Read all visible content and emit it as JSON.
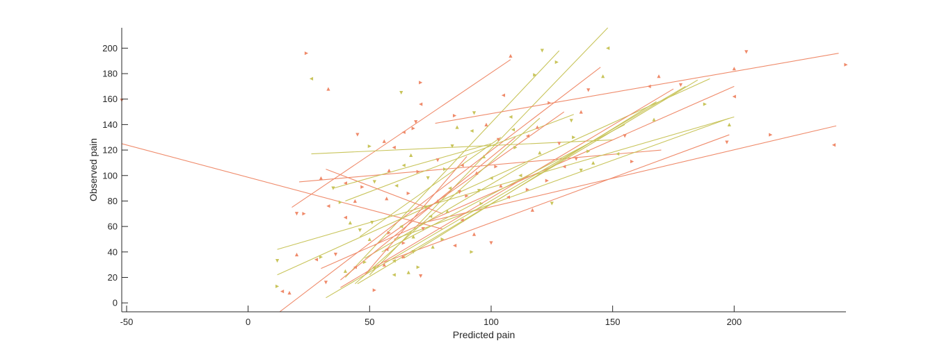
{
  "chart_data": {
    "type": "scatter",
    "title": "",
    "xlabel": "Predicted pain",
    "ylabel": "Observed pain",
    "xlim": [
      -52,
      246
    ],
    "ylim": [
      -7,
      216
    ],
    "xticks": [
      -50,
      0,
      50,
      100,
      150,
      200
    ],
    "yticks": [
      0,
      20,
      40,
      60,
      80,
      100,
      120,
      140,
      160,
      180,
      200
    ],
    "grid": false,
    "legend": "none",
    "colors": {
      "salmon": "#ef8a6a",
      "olive": "#c8c45a",
      "axis": "#262626"
    },
    "fit_lines": [
      {
        "x": [
          -52,
          80
        ],
        "y": [
          125,
          58
        ],
        "color": "#ef8a6a"
      },
      {
        "x": [
          18,
          108
        ],
        "y": [
          75,
          191
        ],
        "color": "#ef8a6a"
      },
      {
        "x": [
          40,
          128
        ],
        "y": [
          20,
          198
        ],
        "color": "#c8c45a"
      },
      {
        "x": [
          50,
          148
        ],
        "y": [
          22,
          216
        ],
        "color": "#c8c45a"
      },
      {
        "x": [
          13,
          145
        ],
        "y": [
          -7,
          185
        ],
        "color": "#ef8a6a"
      },
      {
        "x": [
          77,
          243
        ],
        "y": [
          141,
          196
        ],
        "color": "#ef8a6a"
      },
      {
        "x": [
          70,
          242
        ],
        "y": [
          62,
          139
        ],
        "color": "#ef8a6a"
      },
      {
        "x": [
          26,
          150
        ],
        "y": [
          117,
          128
        ],
        "color": "#c8c45a"
      },
      {
        "x": [
          21,
          170
        ],
        "y": [
          95,
          120
        ],
        "color": "#ef8a6a"
      },
      {
        "x": [
          12,
          200
        ],
        "y": [
          42,
          146
        ],
        "color": "#c8c45a"
      },
      {
        "x": [
          12,
          190
        ],
        "y": [
          22,
          176
        ],
        "color": "#c8c45a"
      },
      {
        "x": [
          30,
          200
        ],
        "y": [
          27,
          170
        ],
        "color": "#ef8a6a"
      },
      {
        "x": [
          45,
          185
        ],
        "y": [
          15,
          175
        ],
        "color": "#c8c45a"
      },
      {
        "x": [
          56,
          198
        ],
        "y": [
          32,
          132
        ],
        "color": "#ef8a6a"
      },
      {
        "x": [
          60,
          198
        ],
        "y": [
          50,
          145
        ],
        "color": "#c8c45a"
      },
      {
        "x": [
          32,
          180
        ],
        "y": [
          4,
          170
        ],
        "color": "#c8c45a"
      },
      {
        "x": [
          38,
          175
        ],
        "y": [
          12,
          168
        ],
        "color": "#ef8a6a"
      },
      {
        "x": [
          64,
          168
        ],
        "y": [
          35,
          158
        ],
        "color": "#c8c45a"
      },
      {
        "x": [
          40,
          134
        ],
        "y": [
          80,
          148
        ],
        "color": "#c8c45a"
      },
      {
        "x": [
          52,
          130
        ],
        "y": [
          45,
          150
        ],
        "color": "#ef8a6a"
      },
      {
        "x": [
          44,
          120
        ],
        "y": [
          15,
          145
        ],
        "color": "#c8c45a"
      },
      {
        "x": [
          46,
          104
        ],
        "y": [
          52,
          130
        ],
        "color": "#c8c45a"
      },
      {
        "x": [
          32,
          80
        ],
        "y": [
          105,
          70
        ],
        "color": "#ef8a6a"
      },
      {
        "x": [
          48,
          115
        ],
        "y": [
          35,
          110
        ],
        "color": "#c8c45a"
      },
      {
        "x": [
          38,
          110
        ],
        "y": [
          18,
          130
        ],
        "color": "#ef8a6a"
      },
      {
        "x": [
          55,
          155
        ],
        "y": [
          40,
          140
        ],
        "color": "#c8c45a"
      },
      {
        "x": [
          35,
          100
        ],
        "y": [
          90,
          125
        ],
        "color": "#c8c45a"
      },
      {
        "x": [
          48,
          90
        ],
        "y": [
          22,
          115
        ],
        "color": "#ef8a6a"
      }
    ],
    "points": [
      {
        "x": -52,
        "y": 159,
        "color": "#ef8a6a"
      },
      {
        "x": 24,
        "y": 196,
        "color": "#ef8a6a"
      },
      {
        "x": 26,
        "y": 176,
        "color": "#c8c45a"
      },
      {
        "x": 33,
        "y": 168,
        "color": "#ef8a6a"
      },
      {
        "x": 63,
        "y": 165,
        "color": "#c8c45a"
      },
      {
        "x": 71,
        "y": 173,
        "color": "#ef8a6a"
      },
      {
        "x": 71,
        "y": 156,
        "color": "#ef8a6a"
      },
      {
        "x": 108,
        "y": 194,
        "color": "#ef8a6a"
      },
      {
        "x": 121,
        "y": 198,
        "color": "#c8c45a"
      },
      {
        "x": 127,
        "y": 189,
        "color": "#c8c45a"
      },
      {
        "x": 148,
        "y": 200,
        "color": "#c8c45a"
      },
      {
        "x": 146,
        "y": 178,
        "color": "#c8c45a"
      },
      {
        "x": 140,
        "y": 167,
        "color": "#ef8a6a"
      },
      {
        "x": 118,
        "y": 179,
        "color": "#c8c45a"
      },
      {
        "x": 105,
        "y": 163,
        "color": "#ef8a6a"
      },
      {
        "x": 169,
        "y": 178,
        "color": "#ef8a6a"
      },
      {
        "x": 178,
        "y": 171,
        "color": "#ef8a6a"
      },
      {
        "x": 188,
        "y": 156,
        "color": "#c8c45a"
      },
      {
        "x": 165,
        "y": 170,
        "color": "#ef8a6a"
      },
      {
        "x": 200,
        "y": 184,
        "color": "#ef8a6a"
      },
      {
        "x": 205,
        "y": 197,
        "color": "#ef8a6a"
      },
      {
        "x": 246,
        "y": 187,
        "color": "#ef8a6a"
      },
      {
        "x": 200,
        "y": 162,
        "color": "#ef8a6a"
      },
      {
        "x": 198,
        "y": 140,
        "color": "#c8c45a"
      },
      {
        "x": 197,
        "y": 126,
        "color": "#ef8a6a"
      },
      {
        "x": 215,
        "y": 132,
        "color": "#ef8a6a"
      },
      {
        "x": 241,
        "y": 124,
        "color": "#ef8a6a"
      },
      {
        "x": 167,
        "y": 144,
        "color": "#c8c45a"
      },
      {
        "x": 155,
        "y": 131,
        "color": "#ef8a6a"
      },
      {
        "x": 158,
        "y": 111,
        "color": "#ef8a6a"
      },
      {
        "x": 152,
        "y": 117,
        "color": "#c8c45a"
      },
      {
        "x": 137,
        "y": 150,
        "color": "#ef8a6a"
      },
      {
        "x": 133,
        "y": 143,
        "color": "#c8c45a"
      },
      {
        "x": 124,
        "y": 157,
        "color": "#ef8a6a"
      },
      {
        "x": 108,
        "y": 146,
        "color": "#c8c45a"
      },
      {
        "x": 98,
        "y": 140,
        "color": "#ef8a6a"
      },
      {
        "x": 93,
        "y": 149,
        "color": "#c8c45a"
      },
      {
        "x": 85,
        "y": 147,
        "color": "#ef8a6a"
      },
      {
        "x": 92,
        "y": 135,
        "color": "#c8c45a"
      },
      {
        "x": 86,
        "y": 138,
        "color": "#c8c45a"
      },
      {
        "x": 69,
        "y": 142,
        "color": "#ef8a6a"
      },
      {
        "x": 68,
        "y": 137,
        "color": "#ef8a6a"
      },
      {
        "x": 64,
        "y": 134,
        "color": "#ef8a6a"
      },
      {
        "x": 56,
        "y": 127,
        "color": "#ef8a6a"
      },
      {
        "x": 45,
        "y": 132,
        "color": "#ef8a6a"
      },
      {
        "x": 50,
        "y": 123,
        "color": "#c8c45a"
      },
      {
        "x": 60,
        "y": 122,
        "color": "#ef8a6a"
      },
      {
        "x": 67,
        "y": 116,
        "color": "#c8c45a"
      },
      {
        "x": 78,
        "y": 112,
        "color": "#ef8a6a"
      },
      {
        "x": 81,
        "y": 105,
        "color": "#c8c45a"
      },
      {
        "x": 88,
        "y": 108,
        "color": "#ef8a6a"
      },
      {
        "x": 97,
        "y": 115,
        "color": "#c8c45a"
      },
      {
        "x": 103,
        "y": 128,
        "color": "#ef8a6a"
      },
      {
        "x": 110,
        "y": 122,
        "color": "#c8c45a"
      },
      {
        "x": 115,
        "y": 131,
        "color": "#ef8a6a"
      },
      {
        "x": 120,
        "y": 118,
        "color": "#c8c45a"
      },
      {
        "x": 128,
        "y": 125,
        "color": "#ef8a6a"
      },
      {
        "x": 134,
        "y": 130,
        "color": "#c8c45a"
      },
      {
        "x": 130,
        "y": 107,
        "color": "#ef8a6a"
      },
      {
        "x": 142,
        "y": 110,
        "color": "#c8c45a"
      },
      {
        "x": 137,
        "y": 104,
        "color": "#c8c45a"
      },
      {
        "x": 123,
        "y": 96,
        "color": "#ef8a6a"
      },
      {
        "x": 112,
        "y": 100,
        "color": "#c8c45a"
      },
      {
        "x": 104,
        "y": 92,
        "color": "#ef8a6a"
      },
      {
        "x": 95,
        "y": 88,
        "color": "#c8c45a"
      },
      {
        "x": 90,
        "y": 84,
        "color": "#ef8a6a"
      },
      {
        "x": 83,
        "y": 90,
        "color": "#c8c45a"
      },
      {
        "x": 78,
        "y": 80,
        "color": "#ef8a6a"
      },
      {
        "x": 73,
        "y": 75,
        "color": "#c8c45a"
      },
      {
        "x": 66,
        "y": 86,
        "color": "#ef8a6a"
      },
      {
        "x": 61,
        "y": 92,
        "color": "#c8c45a"
      },
      {
        "x": 57,
        "y": 82,
        "color": "#ef8a6a"
      },
      {
        "x": 52,
        "y": 95,
        "color": "#c8c45a"
      },
      {
        "x": 47,
        "y": 91,
        "color": "#ef8a6a"
      },
      {
        "x": 40,
        "y": 94,
        "color": "#ef8a6a"
      },
      {
        "x": 30,
        "y": 98,
        "color": "#ef8a6a"
      },
      {
        "x": 35,
        "y": 90,
        "color": "#c8c45a"
      },
      {
        "x": 38,
        "y": 79,
        "color": "#c8c45a"
      },
      {
        "x": 33,
        "y": 76,
        "color": "#ef8a6a"
      },
      {
        "x": 44,
        "y": 80,
        "color": "#ef8a6a"
      },
      {
        "x": 20,
        "y": 70,
        "color": "#ef8a6a"
      },
      {
        "x": 23,
        "y": 70,
        "color": "#ef8a6a"
      },
      {
        "x": 40,
        "y": 67,
        "color": "#ef8a6a"
      },
      {
        "x": 42,
        "y": 63,
        "color": "#c8c45a"
      },
      {
        "x": 51,
        "y": 63,
        "color": "#c8c45a"
      },
      {
        "x": 58,
        "y": 55,
        "color": "#ef8a6a"
      },
      {
        "x": 63,
        "y": 60,
        "color": "#c8c45a"
      },
      {
        "x": 68,
        "y": 52,
        "color": "#c8c45a"
      },
      {
        "x": 72,
        "y": 58,
        "color": "#ef8a6a"
      },
      {
        "x": 80,
        "y": 50,
        "color": "#c8c45a"
      },
      {
        "x": 88,
        "y": 65,
        "color": "#ef8a6a"
      },
      {
        "x": 93,
        "y": 54,
        "color": "#ef8a6a"
      },
      {
        "x": 100,
        "y": 47,
        "color": "#ef8a6a"
      },
      {
        "x": 92,
        "y": 40,
        "color": "#c8c45a"
      },
      {
        "x": 85,
        "y": 45,
        "color": "#ef8a6a"
      },
      {
        "x": 76,
        "y": 44,
        "color": "#c8c45a"
      },
      {
        "x": 68,
        "y": 40,
        "color": "#c8c45a"
      },
      {
        "x": 64,
        "y": 36,
        "color": "#ef8a6a"
      },
      {
        "x": 60,
        "y": 33,
        "color": "#c8c45a"
      },
      {
        "x": 56,
        "y": 30,
        "color": "#ef8a6a"
      },
      {
        "x": 52,
        "y": 27,
        "color": "#c8c45a"
      },
      {
        "x": 48,
        "y": 32,
        "color": "#c8c45a"
      },
      {
        "x": 44,
        "y": 28,
        "color": "#ef8a6a"
      },
      {
        "x": 40,
        "y": 25,
        "color": "#c8c45a"
      },
      {
        "x": 36,
        "y": 38,
        "color": "#ef8a6a"
      },
      {
        "x": 30,
        "y": 36,
        "color": "#c8c45a"
      },
      {
        "x": 28,
        "y": 34,
        "color": "#ef8a6a"
      },
      {
        "x": 20,
        "y": 38,
        "color": "#ef8a6a"
      },
      {
        "x": 12,
        "y": 33,
        "color": "#c8c45a"
      },
      {
        "x": 12,
        "y": 13,
        "color": "#c8c45a"
      },
      {
        "x": 14,
        "y": 9,
        "color": "#ef8a6a"
      },
      {
        "x": 17,
        "y": 8,
        "color": "#ef8a6a"
      },
      {
        "x": 32,
        "y": 16,
        "color": "#ef8a6a"
      },
      {
        "x": 52,
        "y": 10,
        "color": "#ef8a6a"
      },
      {
        "x": 60,
        "y": 22,
        "color": "#c8c45a"
      },
      {
        "x": 66,
        "y": 24,
        "color": "#c8c45a"
      },
      {
        "x": 71,
        "y": 21,
        "color": "#ef8a6a"
      },
      {
        "x": 70,
        "y": 28,
        "color": "#c8c45a"
      },
      {
        "x": 57,
        "y": 42,
        "color": "#ef8a6a"
      },
      {
        "x": 50,
        "y": 50,
        "color": "#c8c45a"
      },
      {
        "x": 46,
        "y": 57,
        "color": "#c8c45a"
      },
      {
        "x": 64,
        "y": 47,
        "color": "#ef8a6a"
      },
      {
        "x": 75,
        "y": 68,
        "color": "#c8c45a"
      },
      {
        "x": 82,
        "y": 72,
        "color": "#c8c45a"
      },
      {
        "x": 87,
        "y": 87,
        "color": "#ef8a6a"
      },
      {
        "x": 96,
        "y": 78,
        "color": "#c8c45a"
      },
      {
        "x": 107,
        "y": 83,
        "color": "#ef8a6a"
      },
      {
        "x": 117,
        "y": 73,
        "color": "#ef8a6a"
      },
      {
        "x": 125,
        "y": 78,
        "color": "#c8c45a"
      },
      {
        "x": 115,
        "y": 89,
        "color": "#ef8a6a"
      },
      {
        "x": 100,
        "y": 98,
        "color": "#c8c45a"
      },
      {
        "x": 94,
        "y": 102,
        "color": "#ef8a6a"
      },
      {
        "x": 74,
        "y": 98,
        "color": "#c8c45a"
      },
      {
        "x": 70,
        "y": 103,
        "color": "#ef8a6a"
      },
      {
        "x": 64,
        "y": 108,
        "color": "#c8c45a"
      },
      {
        "x": 58,
        "y": 104,
        "color": "#ef8a6a"
      },
      {
        "x": 84,
        "y": 123,
        "color": "#c8c45a"
      },
      {
        "x": 102,
        "y": 107,
        "color": "#ef8a6a"
      },
      {
        "x": 109,
        "y": 136,
        "color": "#c8c45a"
      },
      {
        "x": 119,
        "y": 138,
        "color": "#ef8a6a"
      },
      {
        "x": 135,
        "y": 113,
        "color": "#ef8a6a"
      },
      {
        "x": 140,
        "y": 119,
        "color": "#c8c45a"
      }
    ]
  }
}
